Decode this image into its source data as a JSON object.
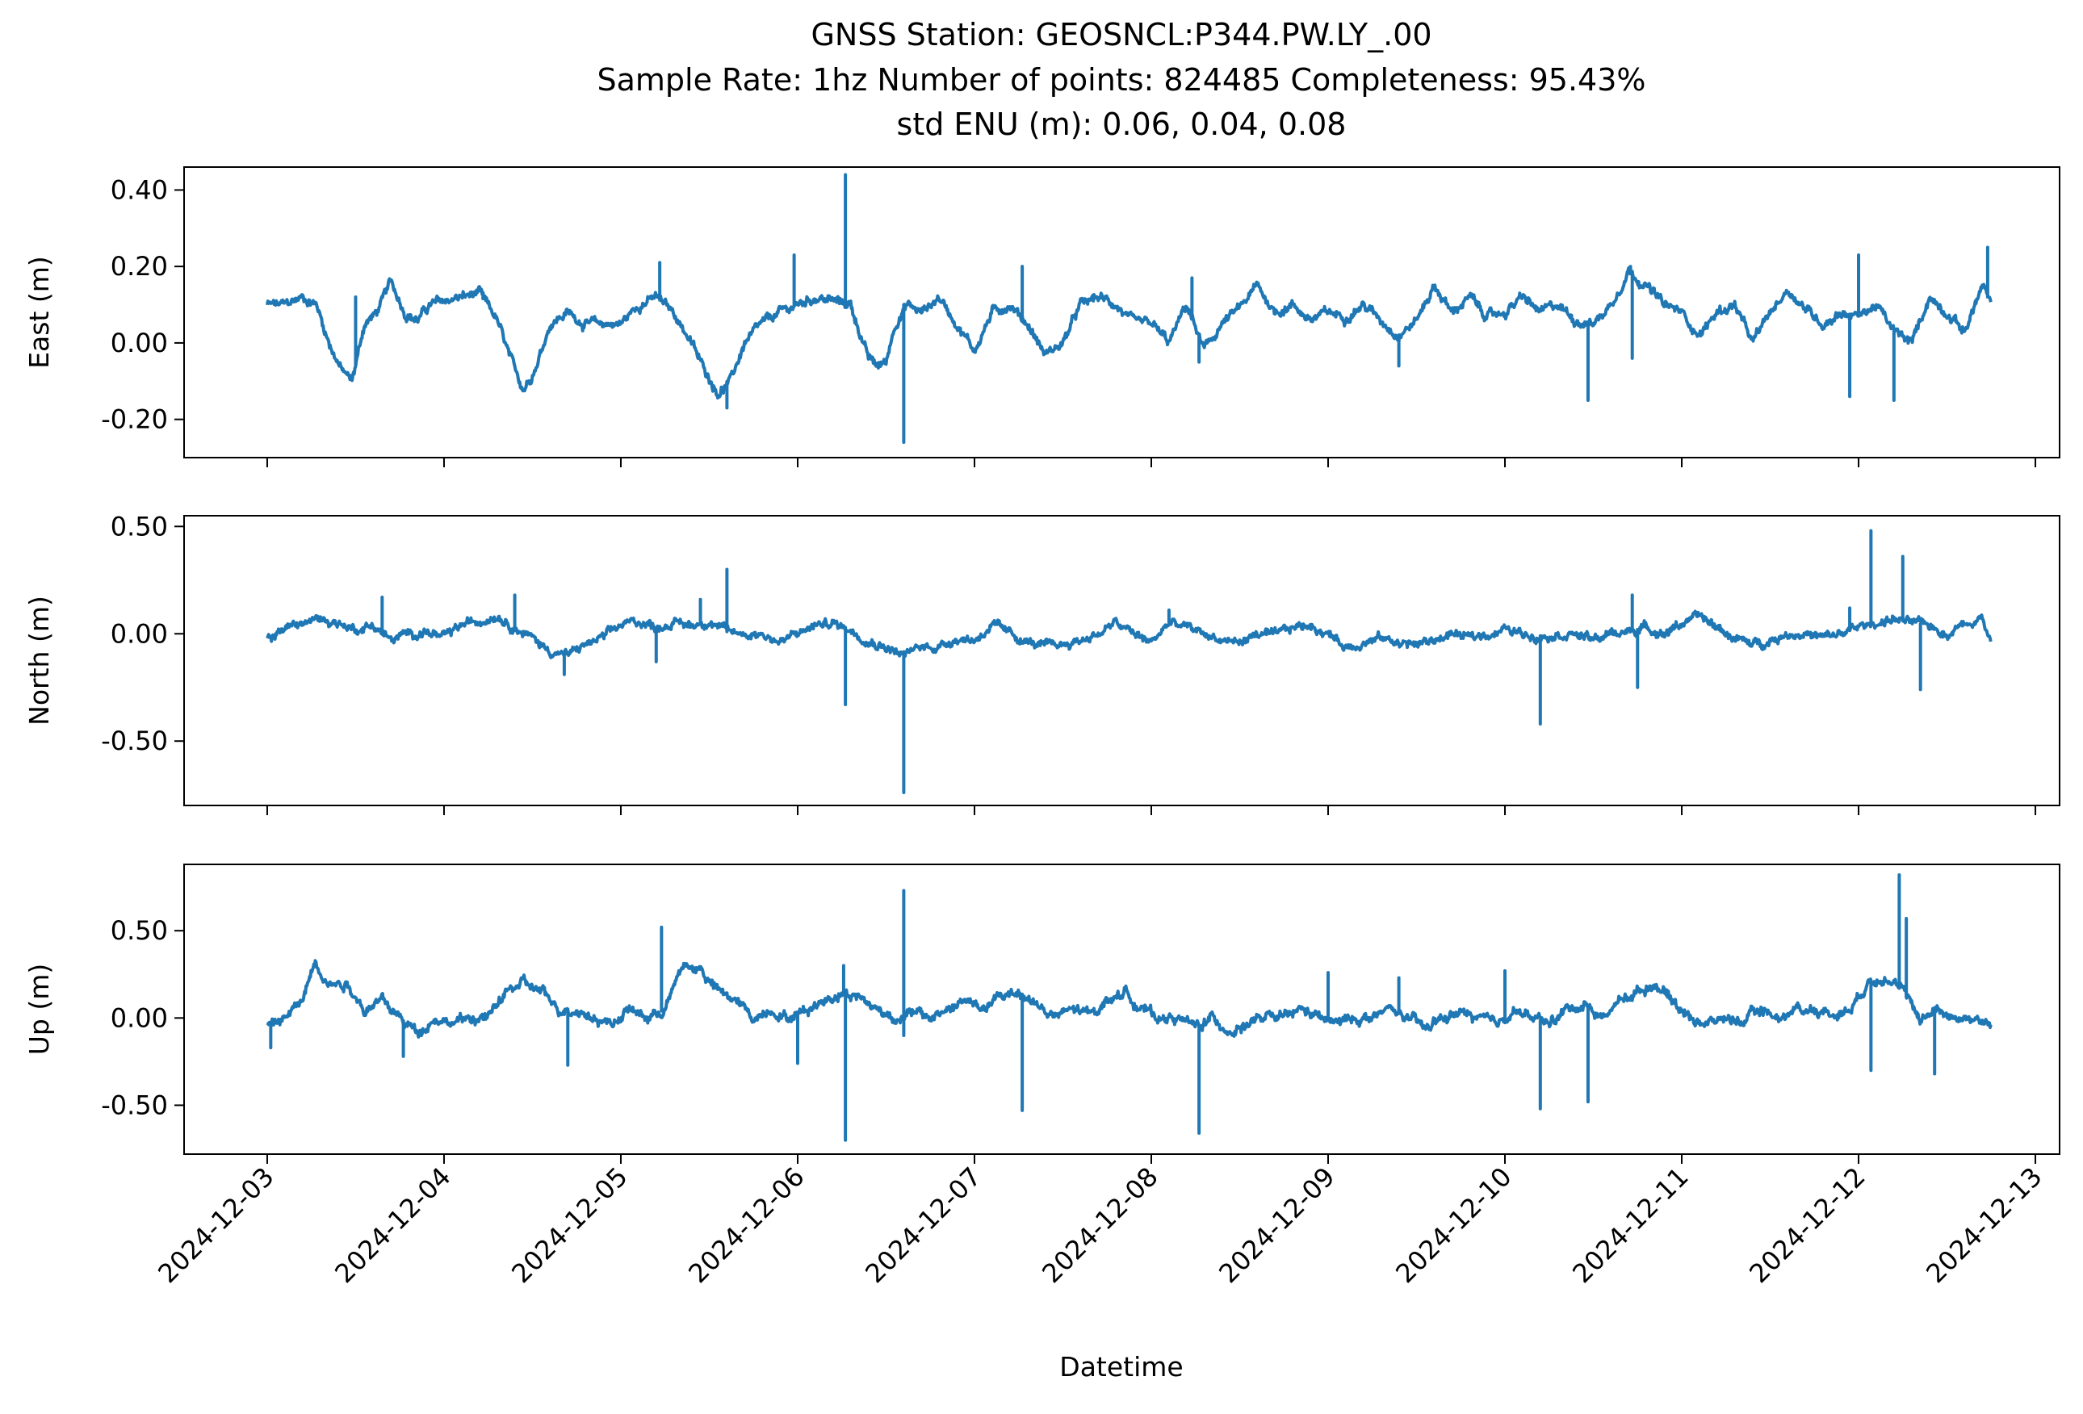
{
  "title_lines": [
    "GNSS Station: GEOSNCL:P344.PW.LY_.00",
    "Sample Rate: 1hz   Number of points: 824485    Completeness:  95.43%",
    "std ENU (m):  0.06, 0.04, 0.08"
  ],
  "xlabel": "Datetime",
  "chart_data": {
    "type": "line",
    "x_axis": {
      "unit": "date",
      "range": [
        "2024-12-02T12:43",
        "2024-12-13T03:17"
      ],
      "data_extent": [
        "2024-12-03T00:00",
        "2024-12-12T18:00"
      ],
      "ticks": [
        "2024-12-03",
        "2024-12-04",
        "2024-12-05",
        "2024-12-06",
        "2024-12-07",
        "2024-12-08",
        "2024-12-09",
        "2024-12-10",
        "2024-12-11",
        "2024-12-12",
        "2024-12-13"
      ]
    },
    "grid": false,
    "legend": "none",
    "line_color": "#1f77b4",
    "panels": [
      {
        "ylabel": "East (m)",
        "ylim": [
          -0.3,
          0.46
        ],
        "yticks": [
          0.4,
          0.2,
          0.0,
          -0.2
        ],
        "ytick_labels": [
          "0.40",
          "0.20",
          "0.00",
          "-0.20"
        ],
        "t_days": [
          0.0,
          0.1,
          0.2,
          0.28,
          0.35,
          0.42,
          0.48,
          0.55,
          0.62,
          0.7,
          0.78,
          0.85,
          0.92,
          1.0,
          1.1,
          1.2,
          1.3,
          1.38,
          1.45,
          1.52,
          1.6,
          1.7,
          1.8,
          1.9,
          2.0,
          2.1,
          2.2,
          2.3,
          2.4,
          2.45,
          2.55,
          2.62,
          2.7,
          2.8,
          2.9,
          3.0,
          3.1,
          3.2,
          3.3,
          3.4,
          3.45,
          3.5,
          3.55,
          3.62,
          3.7,
          3.8,
          3.9,
          4.0,
          4.1,
          4.2,
          4.3,
          4.4,
          4.5,
          4.6,
          4.7,
          4.8,
          4.9,
          5.0,
          5.1,
          5.2,
          5.3,
          5.4,
          5.5,
          5.6,
          5.7,
          5.8,
          5.9,
          6.0,
          6.1,
          6.2,
          6.3,
          6.4,
          6.5,
          6.6,
          6.7,
          6.8,
          6.9,
          7.0,
          7.1,
          7.2,
          7.3,
          7.4,
          7.5,
          7.6,
          7.7,
          7.8,
          7.9,
          8.0,
          8.1,
          8.2,
          8.3,
          8.4,
          8.5,
          8.6,
          8.7,
          8.8,
          8.9,
          9.0,
          9.1,
          9.2,
          9.3,
          9.4,
          9.5,
          9.6,
          9.7,
          9.75
        ],
        "values": [
          0.1,
          0.1,
          0.12,
          0.1,
          0.0,
          -0.07,
          -0.1,
          0.05,
          0.08,
          0.16,
          0.08,
          0.06,
          0.1,
          0.11,
          0.12,
          0.13,
          0.06,
          -0.05,
          -0.12,
          -0.06,
          0.05,
          0.08,
          0.05,
          0.05,
          0.05,
          0.1,
          0.12,
          0.08,
          0.0,
          -0.05,
          -0.13,
          -0.1,
          0.0,
          0.05,
          0.08,
          0.1,
          0.12,
          0.11,
          0.1,
          -0.04,
          -0.06,
          -0.05,
          0.05,
          0.1,
          0.08,
          0.12,
          0.05,
          -0.02,
          0.08,
          0.1,
          0.05,
          -0.03,
          0.0,
          0.1,
          0.12,
          0.1,
          0.05,
          0.05,
          0.0,
          0.1,
          -0.02,
          0.05,
          0.09,
          0.15,
          0.08,
          0.1,
          0.06,
          0.08,
          0.07,
          0.1,
          0.06,
          0.02,
          0.06,
          0.15,
          0.08,
          0.12,
          0.07,
          0.08,
          0.12,
          0.08,
          0.1,
          0.06,
          0.05,
          0.1,
          0.19,
          0.15,
          0.1,
          0.08,
          0.02,
          0.08,
          0.1,
          0.0,
          0.08,
          0.14,
          0.09,
          0.05,
          0.08,
          0.07,
          0.1,
          0.03,
          0.0,
          0.12,
          0.08,
          0.03,
          0.15,
          0.1
        ],
        "spikes": [
          {
            "t": 0.5,
            "v": 0.12
          },
          {
            "t": 1.22,
            "v": 0.12
          },
          {
            "t": 2.22,
            "v": 0.21
          },
          {
            "t": 2.6,
            "v": -0.17
          },
          {
            "t": 2.98,
            "v": 0.23
          },
          {
            "t": 3.27,
            "v": 0.44
          },
          {
            "t": 3.6,
            "v": -0.26
          },
          {
            "t": 3.6,
            "v": 0.1
          },
          {
            "t": 4.27,
            "v": 0.2
          },
          {
            "t": 5.23,
            "v": 0.17
          },
          {
            "t": 5.27,
            "v": -0.05
          },
          {
            "t": 6.4,
            "v": -0.06
          },
          {
            "t": 7.47,
            "v": -0.15
          },
          {
            "t": 7.71,
            "v": 0.2
          },
          {
            "t": 7.72,
            "v": -0.04
          },
          {
            "t": 8.95,
            "v": -0.14
          },
          {
            "t": 9.2,
            "v": -0.15
          },
          {
            "t": 9.0,
            "v": 0.23
          },
          {
            "t": 9.73,
            "v": 0.25
          }
        ]
      },
      {
        "ylabel": "North (m)",
        "ylim": [
          -0.8,
          0.55
        ],
        "yticks": [
          0.5,
          0.0,
          -0.5
        ],
        "ytick_labels": [
          "0.50",
          "0.00",
          "-0.50"
        ],
        "t_days": [
          0.0,
          0.1,
          0.2,
          0.3,
          0.4,
          0.5,
          0.6,
          0.7,
          0.8,
          0.9,
          1.0,
          1.1,
          1.2,
          1.3,
          1.4,
          1.5,
          1.6,
          1.7,
          1.8,
          1.9,
          2.0,
          2.1,
          2.2,
          2.3,
          2.4,
          2.5,
          2.6,
          2.7,
          2.8,
          2.9,
          3.0,
          3.1,
          3.2,
          3.3,
          3.4,
          3.5,
          3.6,
          3.7,
          3.8,
          3.9,
          4.0,
          4.1,
          4.2,
          4.3,
          4.4,
          4.5,
          4.6,
          4.7,
          4.8,
          4.9,
          5.0,
          5.1,
          5.2,
          5.3,
          5.4,
          5.5,
          5.6,
          5.7,
          5.8,
          5.9,
          6.0,
          6.1,
          6.2,
          6.3,
          6.4,
          6.5,
          6.6,
          6.7,
          6.8,
          6.9,
          7.0,
          7.1,
          7.2,
          7.3,
          7.4,
          7.5,
          7.6,
          7.7,
          7.8,
          7.9,
          8.0,
          8.1,
          8.2,
          8.3,
          8.4,
          8.5,
          8.6,
          8.7,
          8.8,
          8.9,
          9.0,
          9.1,
          9.2,
          9.3,
          9.4,
          9.5,
          9.6,
          9.7,
          9.75
        ],
        "values": [
          -0.03,
          0.03,
          0.05,
          0.07,
          0.05,
          0.02,
          0.04,
          -0.03,
          0.0,
          0.01,
          -0.02,
          0.04,
          0.06,
          0.09,
          0.03,
          -0.02,
          -0.08,
          -0.1,
          -0.05,
          -0.02,
          0.04,
          0.06,
          0.03,
          0.05,
          0.04,
          0.06,
          0.01,
          0.0,
          0.0,
          -0.04,
          0.0,
          0.04,
          0.05,
          0.02,
          -0.03,
          -0.06,
          -0.1,
          -0.06,
          -0.06,
          -0.02,
          -0.03,
          0.04,
          0.0,
          -0.04,
          -0.06,
          -0.05,
          -0.03,
          0.0,
          0.05,
          0.0,
          -0.04,
          0.05,
          0.03,
          0.0,
          -0.03,
          -0.04,
          0.0,
          -0.01,
          0.03,
          0.04,
          0.0,
          -0.06,
          -0.04,
          -0.02,
          -0.04,
          -0.05,
          -0.03,
          0.0,
          -0.02,
          0.0,
          0.02,
          0.0,
          -0.01,
          0.0,
          0.0,
          -0.03,
          0.0,
          0.01,
          0.03,
          0.0,
          0.05,
          0.08,
          0.03,
          -0.02,
          -0.05,
          -0.03,
          0.0,
          0.0,
          -0.02,
          0.0,
          0.03,
          0.05,
          0.07,
          0.05,
          0.04,
          0.0,
          0.05,
          0.08,
          -0.05
        ],
        "spikes": [
          {
            "t": 0.65,
            "v": 0.17
          },
          {
            "t": 1.4,
            "v": 0.18
          },
          {
            "t": 1.68,
            "v": -0.19
          },
          {
            "t": 2.2,
            "v": -0.13
          },
          {
            "t": 2.45,
            "v": 0.16
          },
          {
            "t": 2.6,
            "v": 0.3
          },
          {
            "t": 3.27,
            "v": -0.33
          },
          {
            "t": 3.6,
            "v": -0.74
          },
          {
            "t": 5.1,
            "v": 0.11
          },
          {
            "t": 7.2,
            "v": -0.42
          },
          {
            "t": 7.72,
            "v": 0.18
          },
          {
            "t": 7.75,
            "v": -0.25
          },
          {
            "t": 9.07,
            "v": 0.48
          },
          {
            "t": 9.25,
            "v": 0.36
          },
          {
            "t": 9.35,
            "v": -0.26
          },
          {
            "t": 8.95,
            "v": 0.12
          }
        ]
      },
      {
        "ylabel": "Up (m)",
        "ylim": [
          -0.78,
          0.88
        ],
        "yticks": [
          0.5,
          0.0,
          -0.5
        ],
        "ytick_labels": [
          "0.50",
          "0.00",
          "-0.50"
        ],
        "t_days": [
          0.0,
          0.1,
          0.2,
          0.27,
          0.35,
          0.45,
          0.55,
          0.65,
          0.75,
          0.85,
          0.95,
          1.05,
          1.15,
          1.25,
          1.35,
          1.45,
          1.55,
          1.65,
          1.75,
          1.85,
          1.95,
          2.05,
          2.15,
          2.25,
          2.35,
          2.45,
          2.55,
          2.65,
          2.75,
          2.85,
          2.95,
          3.05,
          3.15,
          3.25,
          3.35,
          3.45,
          3.55,
          3.65,
          3.75,
          3.85,
          3.95,
          4.05,
          4.15,
          4.25,
          4.35,
          4.45,
          4.55,
          4.65,
          4.75,
          4.85,
          4.95,
          5.05,
          5.15,
          5.25,
          5.35,
          5.45,
          5.55,
          5.65,
          5.75,
          5.85,
          5.95,
          6.05,
          6.15,
          6.25,
          6.35,
          6.45,
          6.55,
          6.65,
          6.75,
          6.85,
          6.95,
          7.05,
          7.15,
          7.25,
          7.35,
          7.45,
          7.55,
          7.65,
          7.75,
          7.85,
          7.95,
          8.05,
          8.15,
          8.25,
          8.35,
          8.45,
          8.55,
          8.65,
          8.75,
          8.85,
          8.95,
          9.05,
          9.15,
          9.25,
          9.35,
          9.45,
          9.55,
          9.65,
          9.75
        ],
        "values": [
          -0.05,
          0.0,
          0.1,
          0.33,
          0.2,
          0.2,
          0.05,
          0.1,
          0.0,
          -0.08,
          0.0,
          -0.03,
          0.0,
          0.0,
          0.15,
          0.2,
          0.15,
          0.05,
          0.05,
          0.0,
          -0.03,
          0.05,
          0.0,
          0.05,
          0.3,
          0.28,
          0.15,
          0.1,
          0.0,
          0.05,
          0.0,
          0.05,
          0.1,
          0.15,
          0.12,
          0.05,
          0.0,
          0.03,
          0.0,
          0.05,
          0.1,
          0.05,
          0.12,
          0.15,
          0.08,
          0.0,
          0.05,
          0.02,
          0.1,
          0.15,
          0.05,
          0.0,
          0.0,
          -0.05,
          0.0,
          -0.08,
          -0.03,
          0.0,
          0.0,
          0.05,
          0.0,
          -0.03,
          0.0,
          0.0,
          0.05,
          0.0,
          -0.06,
          0.0,
          0.03,
          0.0,
          -0.04,
          0.05,
          0.0,
          -0.03,
          0.05,
          0.08,
          0.0,
          0.1,
          0.15,
          0.2,
          0.1,
          0.0,
          -0.03,
          0.0,
          -0.02,
          0.05,
          0.0,
          0.05,
          0.05,
          0.02,
          0.05,
          0.2,
          0.25,
          0.15,
          0.0,
          0.05,
          0.0,
          0.0,
          -0.05
        ],
        "spikes": [
          {
            "t": 0.02,
            "v": -0.17
          },
          {
            "t": 0.77,
            "v": -0.22
          },
          {
            "t": 1.7,
            "v": -0.27
          },
          {
            "t": 2.23,
            "v": 0.52
          },
          {
            "t": 3.0,
            "v": -0.26
          },
          {
            "t": 3.27,
            "v": -0.7
          },
          {
            "t": 3.26,
            "v": 0.3
          },
          {
            "t": 3.6,
            "v": 0.73
          },
          {
            "t": 3.6,
            "v": -0.1
          },
          {
            "t": 4.27,
            "v": -0.53
          },
          {
            "t": 5.27,
            "v": -0.66
          },
          {
            "t": 6.0,
            "v": 0.26
          },
          {
            "t": 6.4,
            "v": 0.23
          },
          {
            "t": 7.0,
            "v": 0.27
          },
          {
            "t": 7.2,
            "v": -0.52
          },
          {
            "t": 7.47,
            "v": -0.48
          },
          {
            "t": 9.07,
            "v": -0.3
          },
          {
            "t": 9.23,
            "v": 0.82
          },
          {
            "t": 9.27,
            "v": 0.57
          },
          {
            "t": 9.43,
            "v": -0.32
          }
        ]
      }
    ]
  }
}
